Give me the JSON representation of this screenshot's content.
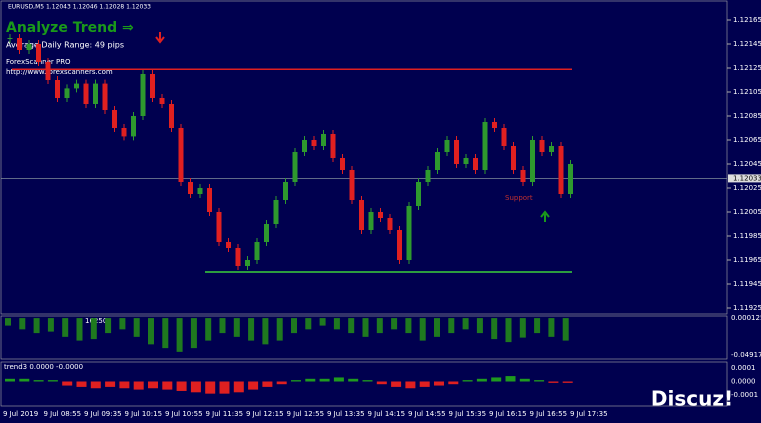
{
  "header": {
    "symbol_line": "EURUSD,M5  1.12043 1.12046 1.12028 1.12033"
  },
  "overlay": {
    "title": "Analyze Trend ⇒",
    "adr": "Average Daily Range: 49 pips",
    "brand": "ForexScanner PRO",
    "url": "http://www.forexscanners.com",
    "support_label": "Support",
    "watermark": "Discuz!"
  },
  "price_axis": {
    "ticks": [
      1.12165,
      1.12145,
      1.12125,
      1.12105,
      1.12085,
      1.12065,
      1.12045,
      1.12025,
      1.12005,
      1.11985,
      1.11965,
      1.11945,
      1.11925
    ],
    "current": 1.12033
  },
  "levels": {
    "resistance": 1.12124,
    "support": 1.11955
  },
  "candles": {
    "closes": [
      1.1215,
      1.1214,
      1.12145,
      1.1213,
      1.12115,
      1.121,
      1.12108,
      1.12112,
      1.12095,
      1.12112,
      1.1209,
      1.12075,
      1.12068,
      1.12085,
      1.1212,
      1.121,
      1.12095,
      1.12075,
      1.1203,
      1.1202,
      1.12025,
      1.12005,
      1.1198,
      1.11975,
      1.1196,
      1.11965,
      1.1198,
      1.11995,
      1.12015,
      1.1203,
      1.12055,
      1.12065,
      1.1206,
      1.1207,
      1.1205,
      1.1204,
      1.12015,
      1.1199,
      1.12005,
      1.12,
      1.1199,
      1.11965,
      1.1201,
      1.1203,
      1.1204,
      1.12055,
      1.12065,
      1.12045,
      1.1205,
      1.1204,
      1.1208,
      1.12075,
      1.1206,
      1.1204,
      1.1203,
      1.12065,
      1.12055,
      1.1206,
      1.1202,
      1.12045
    ]
  },
  "osc1": {
    "label": "16250",
    "ticks": [
      0.000125,
      -0.049175
    ],
    "values": [
      -0.01,
      -0.015,
      -0.02,
      -0.018,
      -0.025,
      -0.03,
      -0.028,
      -0.02,
      -0.015,
      -0.025,
      -0.035,
      -0.04,
      -0.045,
      -0.04,
      -0.03,
      -0.02,
      -0.025,
      -0.03,
      -0.035,
      -0.03,
      -0.02,
      -0.015,
      -0.01,
      -0.015,
      -0.02,
      -0.025,
      -0.02,
      -0.015,
      -0.02,
      -0.03,
      -0.025,
      -0.02,
      -0.015,
      -0.02,
      -0.028,
      -0.032,
      -0.026,
      -0.02,
      -0.025,
      -0.03
    ]
  },
  "osc2": {
    "label": "trend3 0.0000 -0.0000",
    "ticks": [
      0.0001,
      {
        "value": 0,
        "label": "0.0000"
      },
      -0.0001
    ],
    "values": [
      2e-05,
      2e-05,
      1e-05,
      1e-05,
      -3e-05,
      -4e-05,
      -5e-05,
      -4e-05,
      -5e-05,
      -6e-05,
      -5e-05,
      -6e-05,
      -7e-05,
      -8e-05,
      -9e-05,
      -9e-05,
      -8e-05,
      -6e-05,
      -4e-05,
      -2e-05,
      1e-05,
      2e-05,
      2e-05,
      3e-05,
      2e-05,
      1e-05,
      -2e-05,
      -4e-05,
      -5e-05,
      -4e-05,
      -3e-05,
      -2e-05,
      1e-05,
      2e-05,
      3e-05,
      4e-05,
      2e-05,
      1e-05,
      -1e-05,
      -1e-05
    ]
  },
  "time_axis": [
    "9 Jul 2019",
    "9 Jul 08:55",
    "9 Jul 09:35",
    "9 Jul 10:15",
    "9 Jul 10:55",
    "9 Jul 11:35",
    "9 Jul 12:15",
    "9 Jul 12:55",
    "9 Jul 13:35",
    "9 Jul 14:15",
    "9 Jul 14:55",
    "9 Jul 15:35",
    "9 Jul 16:15",
    "9 Jul 16:55",
    "9 Jul 17:35"
  ]
}
